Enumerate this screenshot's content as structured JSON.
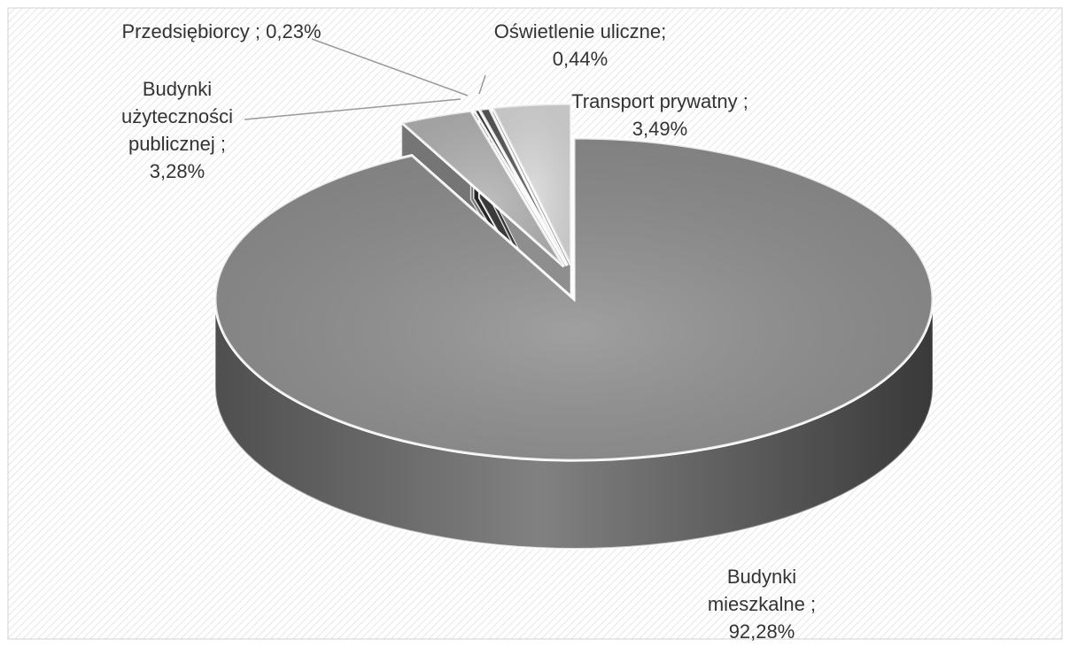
{
  "chart_data": {
    "type": "pie3d",
    "categories": [
      "Budynki mieszkalne",
      "Budynki użyteczności publicznej",
      "Przedsiębiorcy",
      "Oświetlenie uliczne",
      "Transport prywatny"
    ],
    "separator": ";",
    "series": [
      {
        "values": [
          92.28,
          3.28,
          0.23,
          0.44,
          3.49
        ],
        "value_labels": [
          "92,28%",
          "3,28%",
          "0,23%",
          "0,44%",
          "3,49%"
        ],
        "colors": [
          "#8f8f8f",
          "#b4b4b4",
          "#3a3a3a",
          "#5a5a5a",
          "#dadada"
        ]
      }
    ]
  }
}
